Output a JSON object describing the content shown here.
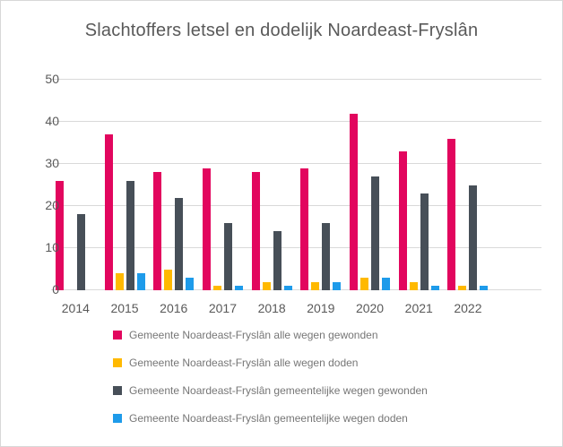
{
  "chart_data": {
    "type": "bar",
    "title": "Slachtoffers letsel en dodelijk Noardeast-Fryslân",
    "categories": [
      "2014",
      "2015",
      "2016",
      "2017",
      "2018",
      "2019",
      "2020",
      "2021",
      "2022"
    ],
    "series": [
      {
        "name": "Gemeente Noardeast-Fryslân alle wegen gewonden",
        "color": "#e2065e",
        "values": [
          26,
          37,
          28,
          29,
          28,
          29,
          42,
          33,
          36
        ]
      },
      {
        "name": "Gemeente Noardeast-Fryslân alle wegen doden",
        "color": "#ffb900",
        "values": [
          0,
          4,
          5,
          1,
          2,
          2,
          3,
          2,
          1
        ]
      },
      {
        "name": "Gemeente Noardeast-Fryslân gemeentelijke wegen gewonden",
        "color": "#474f58",
        "values": [
          18,
          26,
          22,
          16,
          14,
          16,
          27,
          23,
          25
        ]
      },
      {
        "name": "Gemeente Noardeast-Fryslân gemeentelijke wegen doden",
        "color": "#1e9bea",
        "values": [
          0,
          4,
          3,
          1,
          1,
          2,
          3,
          1,
          1
        ]
      }
    ],
    "xlabel": "",
    "ylabel": "",
    "ylim": [
      0,
      50
    ],
    "yticks": [
      0,
      10,
      20,
      30,
      40,
      50
    ],
    "grid": "horizontal",
    "gridline_color": "#d9d9d9",
    "axis_text_color": "#595959",
    "legend_text_color": "#767676",
    "legend_position": "bottom-left"
  }
}
